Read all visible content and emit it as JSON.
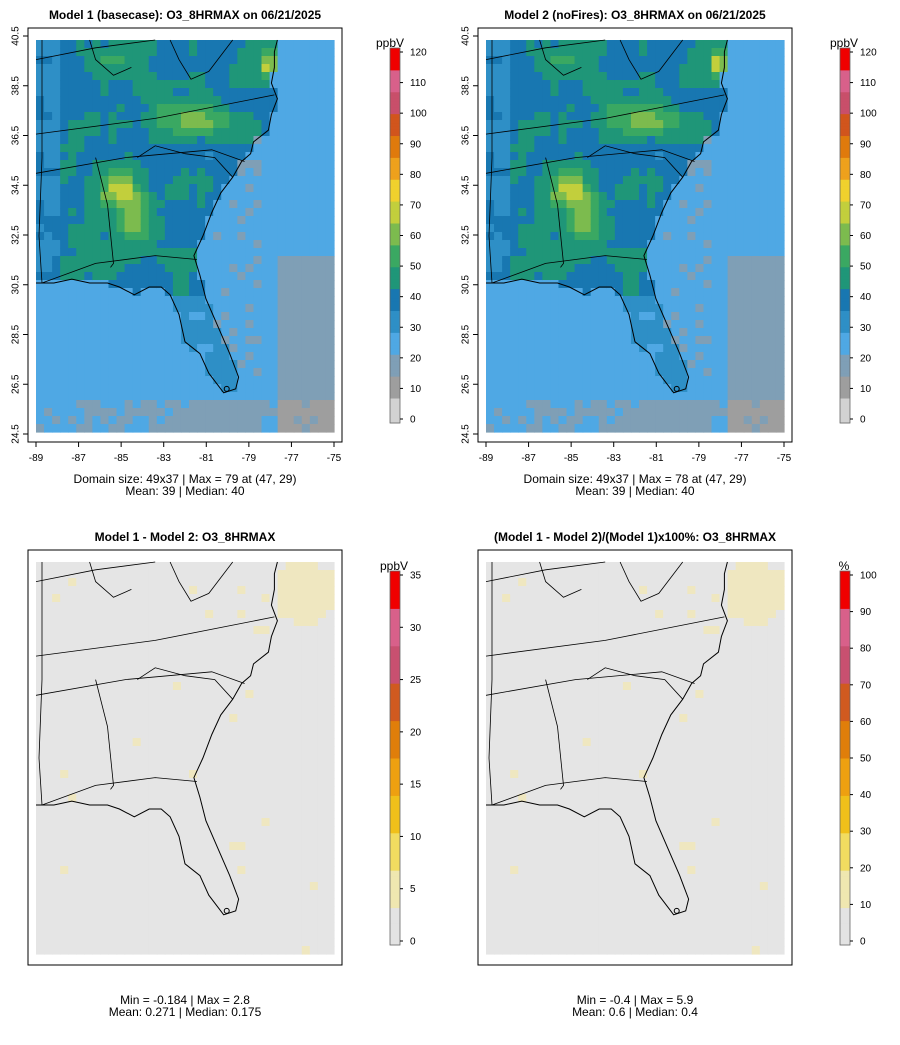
{
  "colors": {
    "frame": "#000000",
    "map_line": "#000000",
    "diff_fill": "#e5e5e5",
    "diff_high": "#efe7c0",
    "palette_conc": [
      "#d2d2d2",
      "#9e9e9e",
      "#7f9fb6",
      "#4fa8e4",
      "#2e8fc6",
      "#1877b1",
      "#1f9678",
      "#3aa862",
      "#7cbb4e",
      "#c2cf3c",
      "#f0d12d",
      "#eea11c",
      "#e07a0c",
      "#d1551d",
      "#c84f6a",
      "#d8608a",
      "#f00000"
    ],
    "palette_diff": [
      "#e3e3e3",
      "#efe7b0",
      "#f1dc60",
      "#f0c01a",
      "#eea010",
      "#e07e0a",
      "#d05a20",
      "#c85070",
      "#d8608a",
      "#f00000"
    ]
  },
  "chart_data": [
    {
      "id": "model1",
      "type": "heatmap",
      "title": "Model 1 (basecase): O3_8HRMAX on 06/21/2025",
      "x_ticks": [
        "-89",
        "-87",
        "-85",
        "-83",
        "-81",
        "-79",
        "-77",
        "-75"
      ],
      "y_ticks": [
        "24.5",
        "26.5",
        "28.5",
        "30.5",
        "32.5",
        "34.5",
        "36.5",
        "38.5",
        "40.5"
      ],
      "xlim": [
        -89,
        -75
      ],
      "ylim": [
        24.5,
        40.5
      ],
      "colorbar": {
        "unit": "ppbV",
        "range": [
          0,
          120
        ],
        "ticks": [
          "0",
          "10",
          "20",
          "30",
          "40",
          "50",
          "60",
          "70",
          "80",
          "90",
          "100",
          "110",
          "120"
        ]
      },
      "stat_lines": [
        "Domain size: 49x37 | Max = 79 at (47, 29)",
        "Mean: 39 |  Median: 40"
      ],
      "domain": "49x37",
      "max": 79,
      "max_cell": [
        47,
        29
      ],
      "mean": 39,
      "median": 40
    },
    {
      "id": "model2",
      "type": "heatmap",
      "title": "Model 2 (noFires): O3_8HRMAX on 06/21/2025",
      "x_ticks": [
        "-89",
        "-87",
        "-85",
        "-83",
        "-81",
        "-79",
        "-77",
        "-75"
      ],
      "y_ticks": [
        "24.5",
        "26.5",
        "28.5",
        "30.5",
        "32.5",
        "34.5",
        "36.5",
        "38.5",
        "40.5"
      ],
      "xlim": [
        -89,
        -75
      ],
      "ylim": [
        24.5,
        40.5
      ],
      "colorbar": {
        "unit": "ppbV",
        "range": [
          0,
          120
        ],
        "ticks": [
          "0",
          "10",
          "20",
          "30",
          "40",
          "50",
          "60",
          "70",
          "80",
          "90",
          "100",
          "110",
          "120"
        ]
      },
      "stat_lines": [
        "Domain size: 49x37 | Max = 78 at (47, 29)",
        "Mean: 39 |  Median: 40"
      ],
      "domain": "49x37",
      "max": 78,
      "max_cell": [
        47,
        29
      ],
      "mean": 39,
      "median": 40
    },
    {
      "id": "diff",
      "type": "heatmap",
      "title": "Model 1 - Model 2: O3_8HRMAX",
      "colorbar": {
        "unit": "ppbV",
        "range": [
          0,
          35
        ],
        "ticks": [
          "0",
          "5",
          "10",
          "15",
          "20",
          "25",
          "30",
          "35"
        ]
      },
      "stat_lines": [
        "Min = -0.184 | Max = 2.8",
        "Mean: 0.271 |  Median: 0.175"
      ],
      "min": -0.184,
      "max": 2.8,
      "mean": 0.271,
      "median": 0.175
    },
    {
      "id": "pctdiff",
      "type": "heatmap",
      "title": "(Model 1 - Model 2)/(Model 1)x100%: O3_8HRMAX",
      "colorbar": {
        "unit": "%",
        "range": [
          0,
          100
        ],
        "ticks": [
          "0",
          "10",
          "20",
          "30",
          "40",
          "50",
          "60",
          "70",
          "80",
          "90",
          "100"
        ]
      },
      "stat_lines": [
        "Min = -0.4 | Max = 5.9",
        "Mean: 0.6 |  Median: 0.4"
      ],
      "min": -0.4,
      "max": 5.9,
      "mean": 0.6,
      "median": 0.4
    }
  ]
}
